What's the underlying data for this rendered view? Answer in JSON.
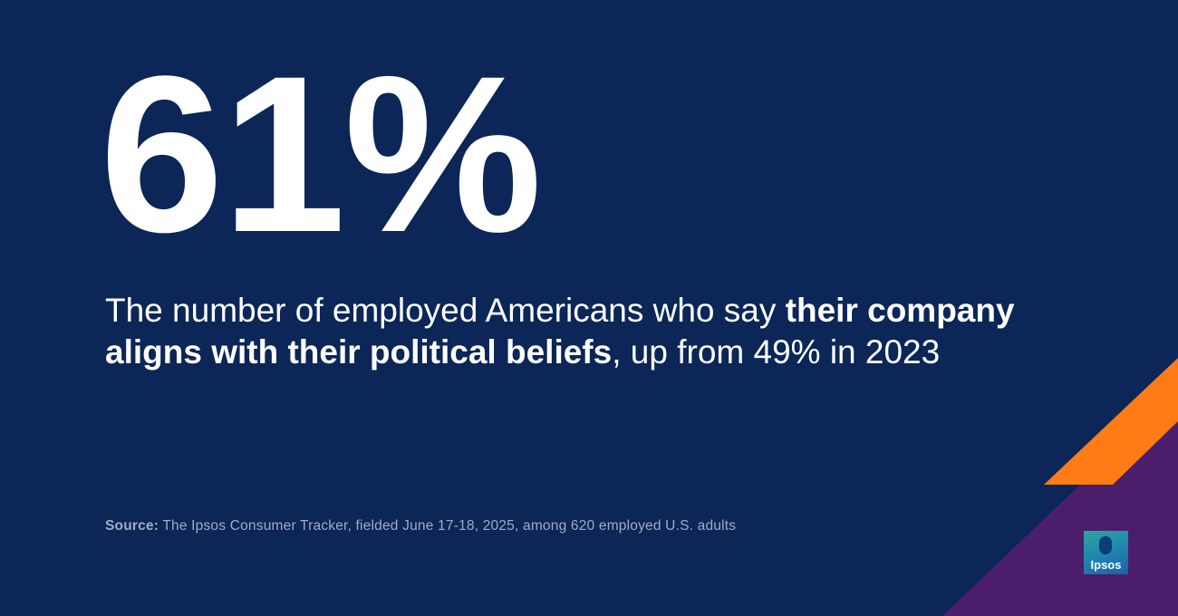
{
  "headline": {
    "stat": "61%"
  },
  "description": {
    "parts": [
      {
        "text": "The number of employed Americans who say ",
        "bold": false
      },
      {
        "text": "their company aligns with their political beliefs",
        "bold": true
      },
      {
        "text": ", up from 49% in 2023",
        "bold": false
      }
    ]
  },
  "source": {
    "label": "Source:",
    "text": "The Ipsos Consumer Tracker, fielded June 17-18, 2025, among 620 employed U.S. adults"
  },
  "logo": {
    "text": "Ipsos"
  }
}
